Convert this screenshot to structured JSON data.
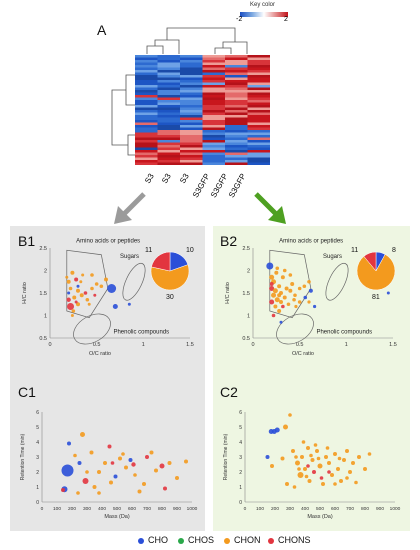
{
  "heatmap": {
    "panel_label": "A",
    "key_title": "Key color",
    "key_min": "-2",
    "key_max": "2",
    "samples": [
      "S3",
      "S3",
      "S3",
      "S3GFP",
      "S3GFP",
      "S3GFP"
    ]
  },
  "colors": {
    "CHO": "#2a4fd8",
    "CHOS": "#2aa84a",
    "CHON": "#f39a1e",
    "CHONS": "#e2353f",
    "left_arrow": "#9b9b9b",
    "right_arrow": "#4ea021",
    "left_bg": "#e6e6e6",
    "right_bg": "#eef6e2"
  },
  "regions": {
    "amino": "Amino acids or peptides",
    "sugars": "Sugars",
    "phenolic": "Phenolic compounds"
  },
  "B1": {
    "label": "B1",
    "xlabel": "O/C ratio",
    "ylabel": "H/C ratio",
    "xticks": [
      "0",
      "0.5",
      "1",
      "1.5"
    ],
    "yticks": [
      "0.5",
      "1",
      "1.5",
      "2",
      "2.5"
    ],
    "pie": {
      "CHO": 10,
      "CHONS": 11,
      "CHON": 30
    }
  },
  "B2": {
    "label": "B2",
    "xlabel": "O/C ratio",
    "ylabel": "H/C ratio",
    "xticks": [
      "0",
      "0.5",
      "1",
      "1.5"
    ],
    "yticks": [
      "0.5",
      "1",
      "1.5",
      "2",
      "2.5"
    ],
    "pie": {
      "CHO": 8,
      "CHONS": 11,
      "CHON": 81
    }
  },
  "C1": {
    "label": "C1",
    "xlabel": "Mass (Da)",
    "ylabel": "Retention Time (min)",
    "xticks": [
      "0",
      "100",
      "200",
      "300",
      "400",
      "500",
      "600",
      "700",
      "800",
      "900",
      "1000"
    ],
    "yticks": [
      "0",
      "1",
      "2",
      "3",
      "4",
      "5",
      "6"
    ]
  },
  "C2": {
    "label": "C2",
    "xlabel": "Mass (Da)",
    "ylabel": "Retention Time (min)",
    "xticks": [
      "0",
      "100",
      "200",
      "300",
      "400",
      "500",
      "600",
      "700",
      "800",
      "900",
      "1000"
    ],
    "yticks": [
      "0",
      "1",
      "2",
      "3",
      "4",
      "5",
      "6"
    ]
  },
  "legend": [
    "CHO",
    "CHOS",
    "CHON",
    "CHONS"
  ]
}
